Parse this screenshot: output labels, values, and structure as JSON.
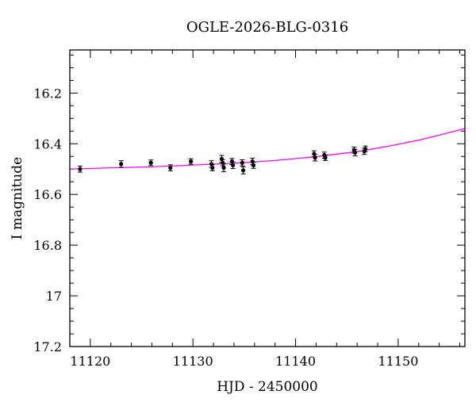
{
  "chart_data": {
    "type": "scatter",
    "title": "OGLE-2026-BLG-0316",
    "xlabel": "HJD - 2450000",
    "ylabel": "I magnitude",
    "xlim": [
      11118,
      11156.5
    ],
    "ylim": [
      17.2,
      16.03
    ],
    "y_inverted": true,
    "xticks_major": [
      11120,
      11130,
      11140,
      11150
    ],
    "xticks_minor_step": 2,
    "yticks_major": [
      16.2,
      16.4,
      16.6,
      16.8,
      17,
      17.2
    ],
    "ytick_labels": [
      "16.2",
      "16.4",
      "16.6",
      "16.8",
      "17",
      "17.2"
    ],
    "yticks_minor_step": 0.05,
    "grid": false,
    "colors": {
      "points": "#000000",
      "model": "#ff00ff"
    },
    "series": [
      {
        "type": "scatter",
        "points": [
          {
            "x": 11119.0,
            "y": 16.5,
            "err": 0.012
          },
          {
            "x": 11123.0,
            "y": 16.48,
            "err": 0.013
          },
          {
            "x": 11125.9,
            "y": 16.475,
            "err": 0.011
          },
          {
            "x": 11127.8,
            "y": 16.495,
            "err": 0.012
          },
          {
            "x": 11129.8,
            "y": 16.47,
            "err": 0.011
          },
          {
            "x": 11131.8,
            "y": 16.48,
            "err": 0.013
          },
          {
            "x": 11131.9,
            "y": 16.495,
            "err": 0.012
          },
          {
            "x": 11132.8,
            "y": 16.46,
            "err": 0.014
          },
          {
            "x": 11132.9,
            "y": 16.475,
            "err": 0.012
          },
          {
            "x": 11133.0,
            "y": 16.495,
            "err": 0.015
          },
          {
            "x": 11133.8,
            "y": 16.47,
            "err": 0.012
          },
          {
            "x": 11133.9,
            "y": 16.485,
            "err": 0.013
          },
          {
            "x": 11134.8,
            "y": 16.475,
            "err": 0.012
          },
          {
            "x": 11134.9,
            "y": 16.505,
            "err": 0.014
          },
          {
            "x": 11135.8,
            "y": 16.47,
            "err": 0.013
          },
          {
            "x": 11135.9,
            "y": 16.485,
            "err": 0.012
          },
          {
            "x": 11141.8,
            "y": 16.44,
            "err": 0.012
          },
          {
            "x": 11141.9,
            "y": 16.455,
            "err": 0.013
          },
          {
            "x": 11142.8,
            "y": 16.445,
            "err": 0.012
          },
          {
            "x": 11142.9,
            "y": 16.455,
            "err": 0.011
          },
          {
            "x": 11145.7,
            "y": 16.425,
            "err": 0.012
          },
          {
            "x": 11145.8,
            "y": 16.435,
            "err": 0.013
          },
          {
            "x": 11146.7,
            "y": 16.43,
            "err": 0.012
          },
          {
            "x": 11146.8,
            "y": 16.42,
            "err": 0.011
          }
        ]
      },
      {
        "type": "line",
        "x": [
          11118,
          11122,
          11126,
          11130,
          11134,
          11138,
          11142,
          11146,
          11149,
          11152,
          11154,
          11156.5
        ],
        "y": [
          16.5,
          16.495,
          16.491,
          16.484,
          16.477,
          16.466,
          16.451,
          16.431,
          16.41,
          16.386,
          16.366,
          16.34
        ]
      }
    ]
  }
}
